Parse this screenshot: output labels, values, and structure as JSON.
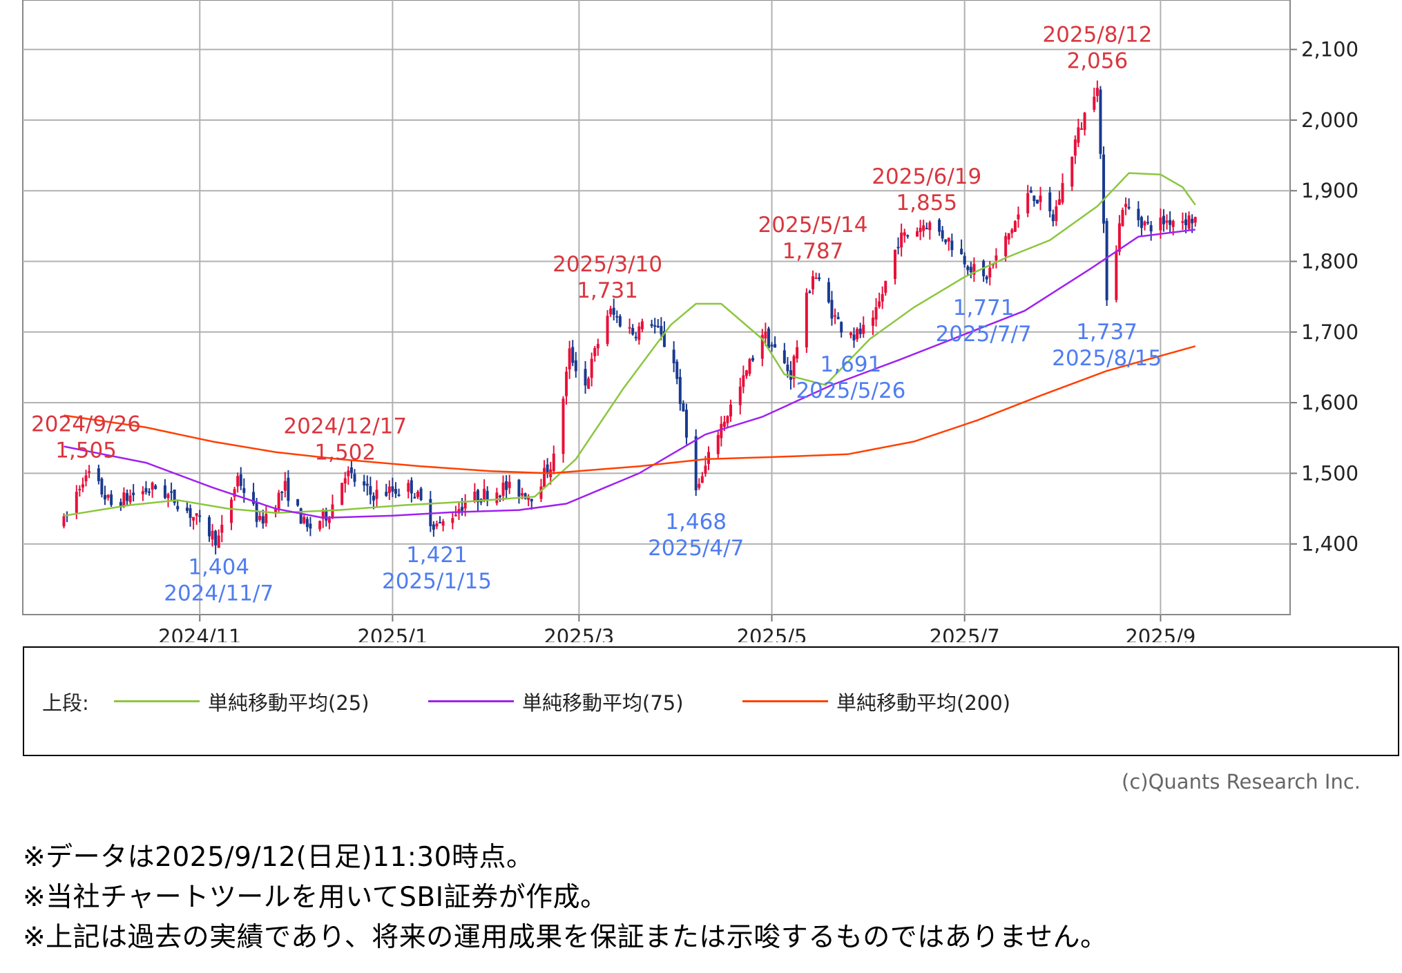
{
  "chart_data": {
    "type": "candlestick",
    "ylim": [
      1300,
      2170
    ],
    "yticks": [
      1400,
      1500,
      1600,
      1700,
      1800,
      1900,
      2000,
      2100
    ],
    "ytick_labels": [
      "1,400",
      "1,500",
      "1,600",
      "1,700",
      "1,800",
      "1,900",
      "2,000",
      "2,100"
    ],
    "xlim": [
      "2024-09-06",
      "2025-10-12"
    ],
    "xticks": [
      "2024-11-01",
      "2025-01-01",
      "2025-03-01",
      "2025-05-01",
      "2025-07-01",
      "2025-09-01"
    ],
    "xtick_labels": [
      "2024/11",
      "2025/1",
      "2025/3",
      "2025/5",
      "2025/7",
      "2025/9"
    ],
    "grid": true,
    "price_path": [
      [
        "2024-09-19",
        1430
      ],
      [
        "2024-09-26",
        1505
      ],
      [
        "2024-10-04",
        1455
      ],
      [
        "2024-10-11",
        1470
      ],
      [
        "2024-10-18",
        1480
      ],
      [
        "2024-10-25",
        1460
      ],
      [
        "2024-11-07",
        1404
      ],
      [
        "2024-11-13",
        1495
      ],
      [
        "2024-11-20",
        1430
      ],
      [
        "2024-11-28",
        1480
      ],
      [
        "2024-12-05",
        1420
      ],
      [
        "2024-12-12",
        1445
      ],
      [
        "2024-12-17",
        1502
      ],
      [
        "2024-12-25",
        1470
      ],
      [
        "2025-01-07",
        1480
      ],
      [
        "2025-01-15",
        1421
      ],
      [
        "2025-01-24",
        1460
      ],
      [
        "2025-02-05",
        1480
      ],
      [
        "2025-02-14",
        1470
      ],
      [
        "2025-02-21",
        1520
      ],
      [
        "2025-02-26",
        1670
      ],
      [
        "2025-03-03",
        1625
      ],
      [
        "2025-03-10",
        1731
      ],
      [
        "2025-03-18",
        1700
      ],
      [
        "2025-03-24",
        1715
      ],
      [
        "2025-03-31",
        1660
      ],
      [
        "2025-04-07",
        1468
      ],
      [
        "2025-04-14",
        1560
      ],
      [
        "2025-04-21",
        1620
      ],
      [
        "2025-04-28",
        1700
      ],
      [
        "2025-05-07",
        1640
      ],
      [
        "2025-05-14",
        1787
      ],
      [
        "2025-05-21",
        1720
      ],
      [
        "2025-05-26",
        1691
      ],
      [
        "2025-06-02",
        1710
      ],
      [
        "2025-06-10",
        1830
      ],
      [
        "2025-06-19",
        1855
      ],
      [
        "2025-06-26",
        1830
      ],
      [
        "2025-07-07",
        1771
      ],
      [
        "2025-07-14",
        1830
      ],
      [
        "2025-07-22",
        1900
      ],
      [
        "2025-07-29",
        1860
      ],
      [
        "2025-08-05",
        1970
      ],
      [
        "2025-08-12",
        2056
      ],
      [
        "2025-08-15",
        1737
      ],
      [
        "2025-08-20",
        1880
      ],
      [
        "2025-08-28",
        1850
      ],
      [
        "2025-09-05",
        1860
      ],
      [
        "2025-09-12",
        1860
      ]
    ],
    "moving_averages": [
      {
        "name": "単純移動平均(25)",
        "color": "#8cc63f",
        "points": [
          [
            "2024-09-19",
            1440
          ],
          [
            "2024-10-10",
            1455
          ],
          [
            "2024-10-25",
            1462
          ],
          [
            "2024-11-10",
            1450
          ],
          [
            "2024-11-25",
            1444
          ],
          [
            "2024-12-15",
            1448
          ],
          [
            "2025-01-05",
            1455
          ],
          [
            "2025-01-25",
            1460
          ],
          [
            "2025-02-15",
            1467
          ],
          [
            "2025-02-28",
            1520
          ],
          [
            "2025-03-15",
            1620
          ],
          [
            "2025-03-30",
            1710
          ],
          [
            "2025-04-07",
            1740
          ],
          [
            "2025-04-15",
            1740
          ],
          [
            "2025-04-28",
            1690
          ],
          [
            "2025-05-05",
            1640
          ],
          [
            "2025-05-18",
            1625
          ],
          [
            "2025-06-01",
            1690
          ],
          [
            "2025-06-15",
            1735
          ],
          [
            "2025-07-01",
            1778
          ],
          [
            "2025-07-14",
            1805
          ],
          [
            "2025-07-28",
            1830
          ],
          [
            "2025-08-12",
            1878
          ],
          [
            "2025-08-22",
            1925
          ],
          [
            "2025-09-01",
            1923
          ],
          [
            "2025-09-08",
            1905
          ],
          [
            "2025-09-12",
            1880
          ]
        ]
      },
      {
        "name": "単純移動平均(75)",
        "color": "#a020f0",
        "points": [
          [
            "2024-09-19",
            1538
          ],
          [
            "2024-10-15",
            1515
          ],
          [
            "2024-11-05",
            1480
          ],
          [
            "2024-11-25",
            1450
          ],
          [
            "2024-12-10",
            1437
          ],
          [
            "2025-01-01",
            1440
          ],
          [
            "2025-01-20",
            1445
          ],
          [
            "2025-02-10",
            1448
          ],
          [
            "2025-02-25",
            1457
          ],
          [
            "2025-03-20",
            1500
          ],
          [
            "2025-04-10",
            1555
          ],
          [
            "2025-04-28",
            1580
          ],
          [
            "2025-05-20",
            1625
          ],
          [
            "2025-06-10",
            1660
          ],
          [
            "2025-06-30",
            1695
          ],
          [
            "2025-07-20",
            1730
          ],
          [
            "2025-08-10",
            1790
          ],
          [
            "2025-08-25",
            1835
          ],
          [
            "2025-09-12",
            1845
          ]
        ]
      },
      {
        "name": "単純移動平均(200)",
        "color": "#ff4000",
        "points": [
          [
            "2024-09-19",
            1582
          ],
          [
            "2024-10-15",
            1565
          ],
          [
            "2024-11-05",
            1545
          ],
          [
            "2024-11-25",
            1530
          ],
          [
            "2024-12-15",
            1520
          ],
          [
            "2025-01-10",
            1510
          ],
          [
            "2025-02-01",
            1503
          ],
          [
            "2025-02-20",
            1500
          ],
          [
            "2025-03-20",
            1510
          ],
          [
            "2025-04-10",
            1520
          ],
          [
            "2025-05-01",
            1523
          ],
          [
            "2025-05-25",
            1527
          ],
          [
            "2025-06-15",
            1545
          ],
          [
            "2025-07-05",
            1575
          ],
          [
            "2025-07-25",
            1610
          ],
          [
            "2025-08-15",
            1645
          ],
          [
            "2025-09-12",
            1680
          ]
        ]
      }
    ],
    "annotations": [
      {
        "type": "high",
        "date": "2024-09-26",
        "date_label": "2024/9/26",
        "value_label": "1,505",
        "color": "#d9363e"
      },
      {
        "type": "high",
        "date": "2024-12-17",
        "date_label": "2024/12/17",
        "value_label": "1,502",
        "color": "#d9363e"
      },
      {
        "type": "high",
        "date": "2025-03-10",
        "date_label": "2025/3/10",
        "value_label": "1,731",
        "color": "#d9363e"
      },
      {
        "type": "high",
        "date": "2025-05-14",
        "date_label": "2025/5/14",
        "value_label": "1,787",
        "color": "#d9363e"
      },
      {
        "type": "high",
        "date": "2025-06-19",
        "date_label": "2025/6/19",
        "value_label": "1,855",
        "color": "#d9363e"
      },
      {
        "type": "high",
        "date": "2025-08-12",
        "date_label": "2025/8/12",
        "value_label": "2,056",
        "color": "#d9363e"
      },
      {
        "type": "low",
        "date": "2024-11-07",
        "date_label": "2024/11/7",
        "value_label": "1,404",
        "color": "#4f7df0"
      },
      {
        "type": "low",
        "date": "2025-01-15",
        "date_label": "2025/1/15",
        "value_label": "1,421",
        "color": "#4f7df0"
      },
      {
        "type": "low",
        "date": "2025-04-07",
        "date_label": "2025/4/7",
        "value_label": "1,468",
        "color": "#4f7df0"
      },
      {
        "type": "low",
        "date": "2025-05-26",
        "date_label": "2025/5/26",
        "value_label": "1,691",
        "color": "#4f7df0"
      },
      {
        "type": "low",
        "date": "2025-07-07",
        "date_label": "2025/7/7",
        "value_label": "1,771",
        "color": "#4f7df0"
      },
      {
        "type": "low",
        "date": "2025-08-15",
        "date_label": "2025/8/15",
        "value_label": "1,737",
        "color": "#4f7df0"
      }
    ],
    "up_color": "#e8103a",
    "down_color": "#1a3a8f"
  },
  "legend": {
    "title": "上段:",
    "items": [
      {
        "label": "単純移動平均(25)",
        "color": "#8cc63f"
      },
      {
        "label": "単純移動平均(75)",
        "color": "#a020f0"
      },
      {
        "label": "単純移動平均(200)",
        "color": "#ff4000"
      }
    ]
  },
  "copyright": "(c)Quants Research Inc.",
  "notes": [
    "※データは2025/9/12(日足)11:30時点。",
    "※当社チャートツールを用いてSBI証券が作成。",
    "※上記は過去の実績であり、将来の運用成果を保証または示唆するものではありません。"
  ]
}
